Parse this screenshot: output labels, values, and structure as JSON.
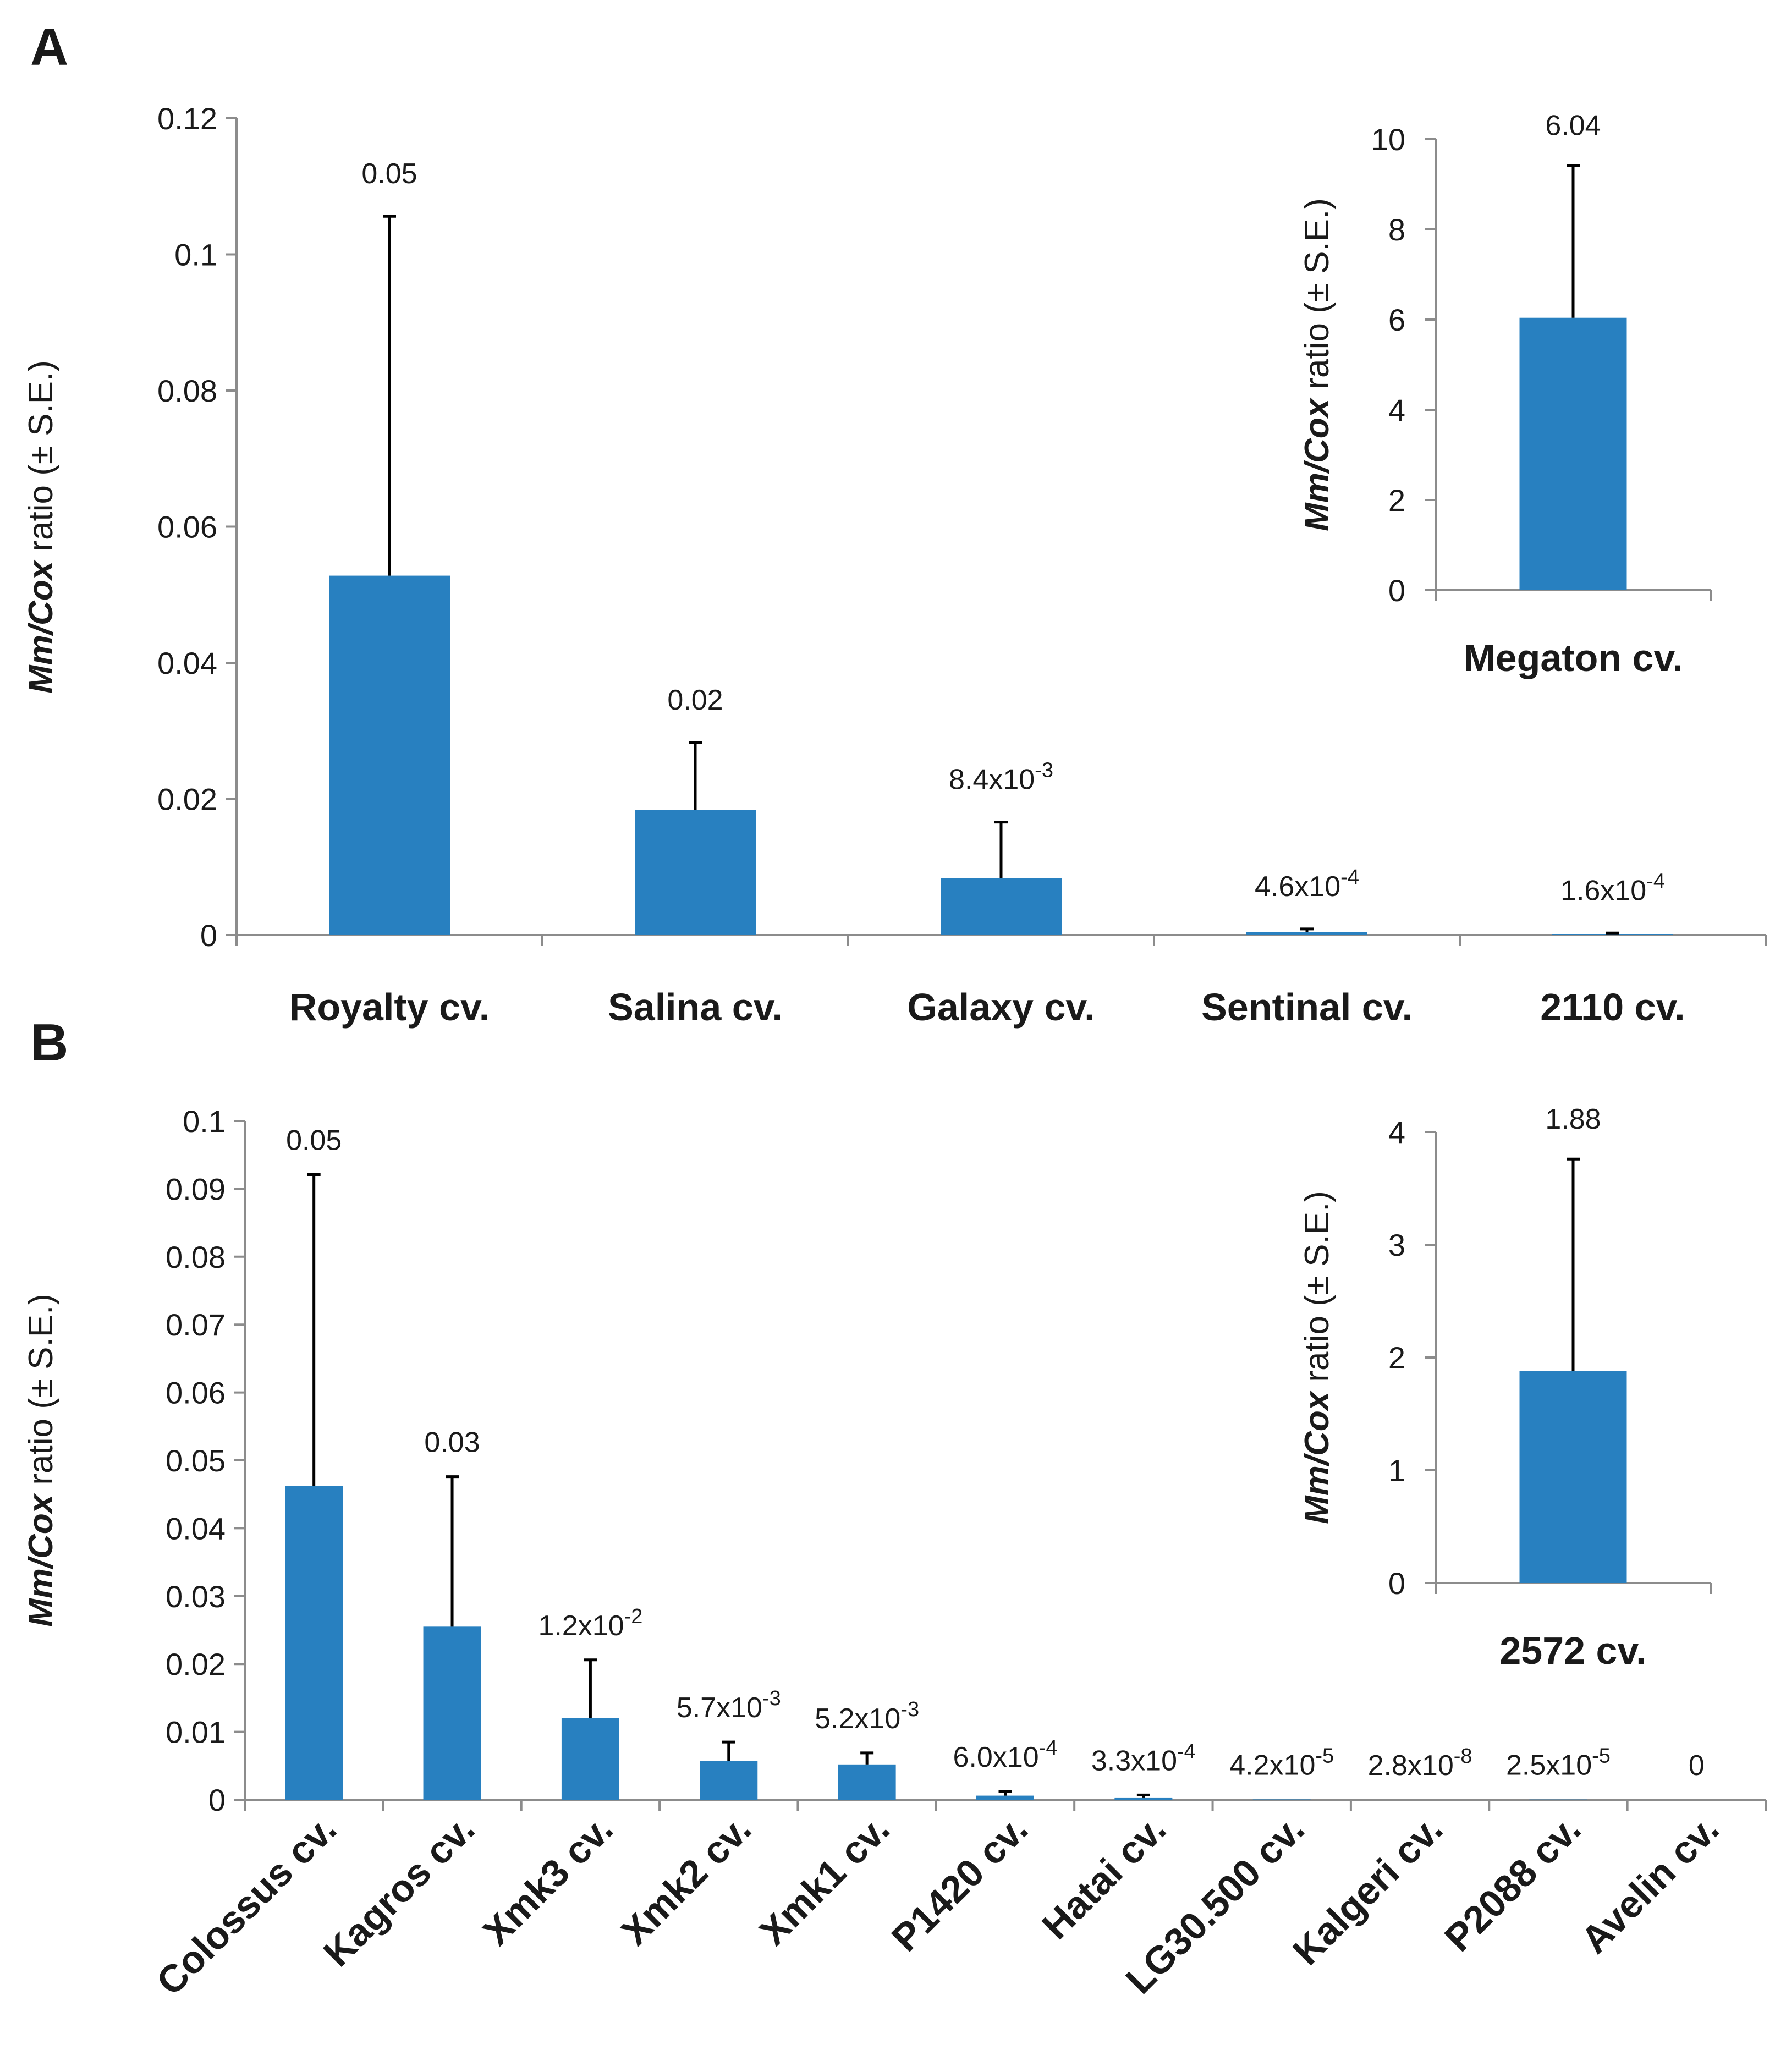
{
  "colors": {
    "bar": "#2880c0",
    "axis": "#8c8c8c",
    "error_bar": "#000000"
  },
  "chart_data": [
    {
      "panel": "A",
      "type": "bar",
      "ylabel_italic": "Mm/Cox",
      "ylabel_rest": " ratio (± S.E.)",
      "ylim": [
        0,
        0.12
      ],
      "ytick_values": [
        0,
        0.02,
        0.04,
        0.06,
        0.08,
        0.1,
        0.12
      ],
      "ytick_labels": [
        "0",
        "0.02",
        "0.04",
        "0.06",
        "0.08",
        "0.1",
        "0.12"
      ],
      "categories": [
        "Royalty cv.",
        "Salina cv.",
        "Galaxy cv.",
        "Sentinal cv.",
        "2110 cv."
      ],
      "values": [
        0.0528,
        0.0184,
        0.0084,
        0.00046,
        0.00016
      ],
      "error_tops": [
        0.1056,
        0.0283,
        0.0166,
        0.0009,
        0.0003
      ],
      "value_labels": [
        {
          "base": "0.05",
          "exp": ""
        },
        {
          "base": "0.02",
          "exp": ""
        },
        {
          "base": "8.4x10",
          "exp": "-3"
        },
        {
          "base": "4.6x10",
          "exp": "-4"
        },
        {
          "base": "1.6x10",
          "exp": "-4"
        }
      ]
    },
    {
      "panel": "A",
      "role": "inset",
      "type": "bar",
      "ylabel_italic": "Mm/Cox",
      "ylabel_rest": " ratio (± S.E.)",
      "ylim": [
        0,
        10
      ],
      "ytick_values": [
        0,
        2,
        4,
        6,
        8,
        10
      ],
      "ytick_labels": [
        "0",
        "2",
        "4",
        "6",
        "8",
        "10"
      ],
      "categories": [
        "Megaton cv."
      ],
      "values": [
        6.04
      ],
      "error_tops": [
        9.42
      ],
      "value_labels": [
        {
          "base": "6.04",
          "exp": ""
        }
      ]
    },
    {
      "panel": "B",
      "type": "bar",
      "ylabel_italic": "Mm/Cox",
      "ylabel_rest": " ratio (± S.E.)",
      "ylim": [
        0,
        0.1
      ],
      "ytick_values": [
        0,
        0.01,
        0.02,
        0.03,
        0.04,
        0.05,
        0.06,
        0.07,
        0.08,
        0.09,
        0.1
      ],
      "ytick_labels": [
        "0",
        "0.01",
        "0.02",
        "0.03",
        "0.04",
        "0.05",
        "0.06",
        "0.07",
        "0.08",
        "0.09",
        "0.1"
      ],
      "categories": [
        "Colossus cv.",
        "Kagros cv.",
        "Xmk3 cv.",
        "Xmk2 cv.",
        "Xmk1 cv.",
        "P1420 cv.",
        "Hatai cv.",
        "LG30.500 cv.",
        "Kalgeri cv.",
        "P2088 cv.",
        "Avelin cv."
      ],
      "values": [
        0.0462,
        0.0255,
        0.012,
        0.0057,
        0.0052,
        0.0006,
        0.00033,
        4.2e-05,
        2.8e-08,
        2.5e-05,
        0
      ],
      "error_tops": [
        0.0921,
        0.0476,
        0.0206,
        0.0085,
        0.0069,
        0.0012,
        0.0007,
        0,
        0,
        0,
        0
      ],
      "value_labels": [
        {
          "base": "0.05",
          "exp": ""
        },
        {
          "base": "0.03",
          "exp": ""
        },
        {
          "base": "1.2x10",
          "exp": "-2"
        },
        {
          "base": "5.7x10",
          "exp": "-3"
        },
        {
          "base": "5.2x10",
          "exp": "-3"
        },
        {
          "base": "6.0x10",
          "exp": "-4"
        },
        {
          "base": "3.3x10",
          "exp": "-4"
        },
        {
          "base": "4.2x10",
          "exp": "-5"
        },
        {
          "base": "2.8x10",
          "exp": "-8"
        },
        {
          "base": "2.5x10",
          "exp": "-5"
        },
        {
          "base": "0",
          "exp": ""
        }
      ]
    },
    {
      "panel": "B",
      "role": "inset",
      "type": "bar",
      "ylabel_italic": "Mm/Cox",
      "ylabel_rest": " ratio (± S.E.)",
      "ylim": [
        0,
        4
      ],
      "ytick_values": [
        0,
        1,
        2,
        3,
        4
      ],
      "ytick_labels": [
        "0",
        "1",
        "2",
        "3",
        "4"
      ],
      "categories": [
        "2572 cv."
      ],
      "values": [
        1.88
      ],
      "error_tops": [
        3.76
      ],
      "value_labels": [
        {
          "base": "1.88",
          "exp": ""
        }
      ]
    }
  ]
}
